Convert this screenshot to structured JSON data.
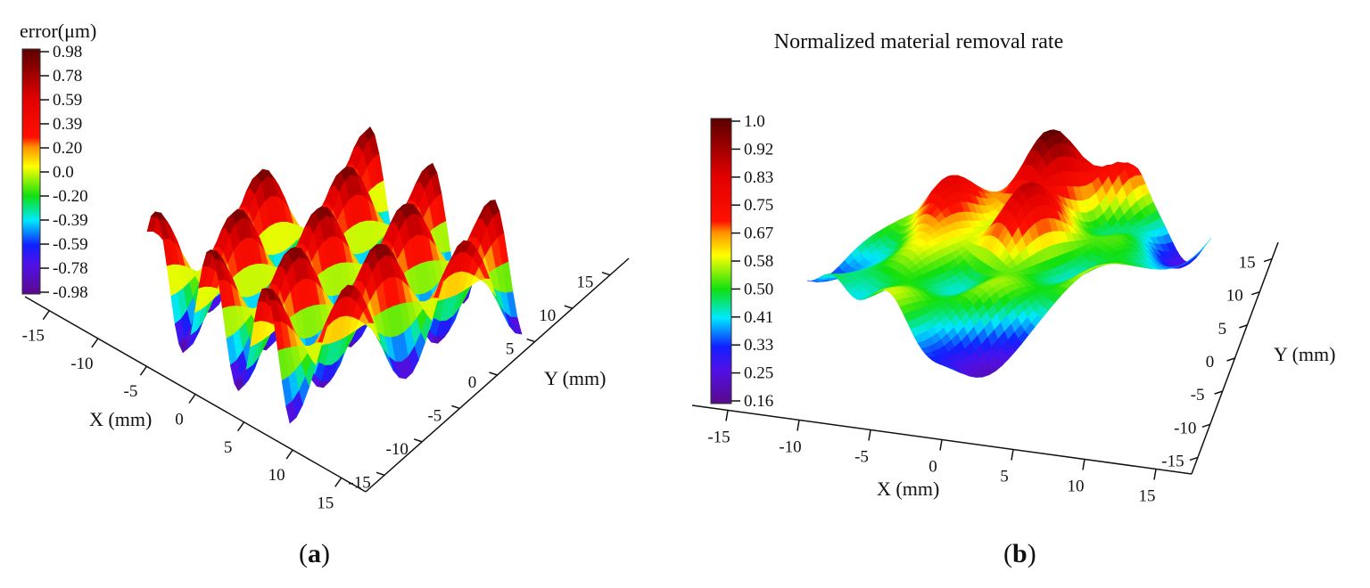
{
  "chart_data": [
    {
      "type": "surface",
      "panel": "a",
      "title": "",
      "colorbar_label": "error(μm)",
      "colorbar_ticks": [
        "0.98",
        "0.78",
        "0.59",
        "0.39",
        "0.20",
        "0.0",
        "-0.20",
        "-0.39",
        "-0.59",
        "-0.78",
        "-0.98"
      ],
      "zlim": [
        -0.98,
        0.98
      ],
      "xlabel": "X (mm)",
      "ylabel": "Y (mm)",
      "x_ticks": [
        "-15",
        "-10",
        "-5",
        "0",
        "5",
        "10",
        "15"
      ],
      "y_ticks": [
        "-15",
        "-10",
        "-5",
        "0",
        "5",
        "10",
        "15"
      ],
      "xlim": [
        -15,
        15
      ],
      "ylim": [
        -15,
        15
      ],
      "colormap": "jet"
    },
    {
      "type": "surface",
      "panel": "b",
      "title": "Normalized material removal rate",
      "colorbar_label": "",
      "colorbar_ticks": [
        "1.0",
        "0.92",
        "0.83",
        "0.75",
        "0.67",
        "0.58",
        "0.50",
        "0.41",
        "0.33",
        "0.25",
        "0.16"
      ],
      "zlim": [
        0.16,
        1.0
      ],
      "xlabel": "X (mm)",
      "ylabel": "Y (mm)",
      "x_ticks": [
        "-15",
        "-10",
        "-5",
        "0",
        "5",
        "10",
        "15"
      ],
      "y_ticks": [
        "-15",
        "-10",
        "-5",
        "0",
        "5",
        "10",
        "15"
      ],
      "xlim": [
        -15,
        15
      ],
      "ylim": [
        -15,
        15
      ],
      "colormap": "jet"
    }
  ],
  "captions": [
    "a",
    "b"
  ],
  "colors": {
    "jet": [
      "#5a0a8a",
      "#3a10e0",
      "#0060ff",
      "#00e8ff",
      "#20e020",
      "#c8f000",
      "#ffff00",
      "#ff9000",
      "#ff1000",
      "#ff0000",
      "#5a0000"
    ]
  }
}
